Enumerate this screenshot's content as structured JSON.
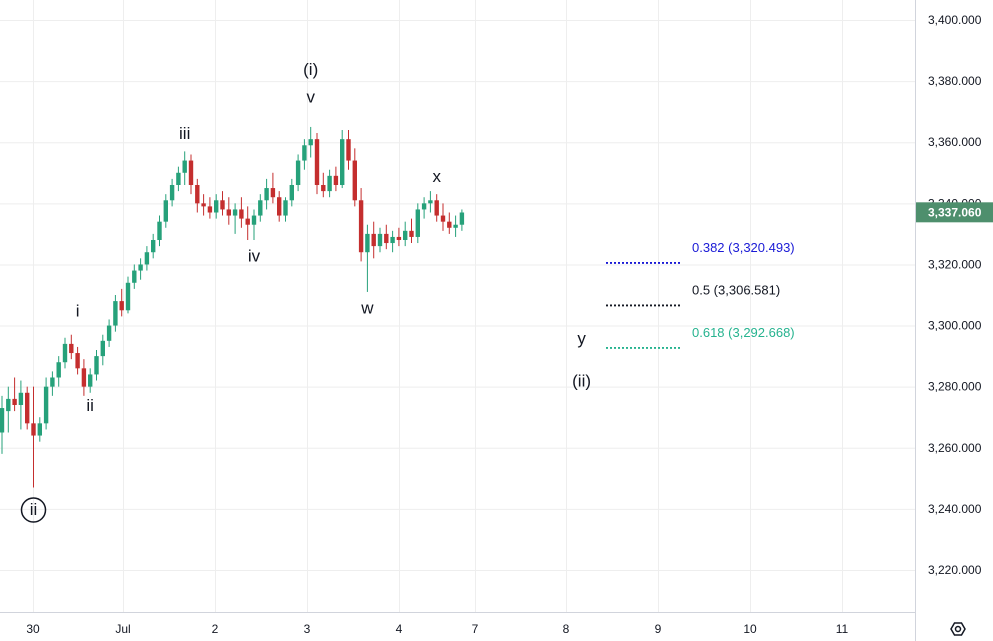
{
  "chart_data": {
    "type": "candlestick",
    "instrument_price_label": "3,337.060",
    "y_axis": {
      "ylim": [
        3205,
        3410
      ],
      "ticks": [
        3400,
        3380,
        3360,
        3340,
        3320,
        3300,
        3280,
        3260,
        3240,
        3220
      ],
      "tick_labels": [
        "3,400.000",
        "3,380.000",
        "3,360.000",
        "3,340.000",
        "3,320.000",
        "3,300.000",
        "3,280.000",
        "3,260.000",
        "3,240.000",
        "3,220.000"
      ]
    },
    "x_axis": {
      "tick_labels": [
        "30",
        "Jul",
        "2",
        "3",
        "4",
        "7",
        "8",
        "9",
        "10",
        "11"
      ]
    },
    "last_price": 3337.06,
    "candles": [
      [
        3265,
        3277,
        3258,
        3273
      ],
      [
        3272,
        3280,
        3265,
        3276
      ],
      [
        3276,
        3283,
        3272,
        3274
      ],
      [
        3274,
        3282,
        3266,
        3278
      ],
      [
        3278,
        3280,
        3266,
        3268
      ],
      [
        3268,
        3280,
        3247,
        3264
      ],
      [
        3264,
        3270,
        3262,
        3268
      ],
      [
        3268,
        3283,
        3266,
        3280
      ],
      [
        3280,
        3285,
        3277,
        3283
      ],
      [
        3283,
        3290,
        3280,
        3288
      ],
      [
        3288,
        3296,
        3286,
        3294
      ],
      [
        3294,
        3297,
        3289,
        3291
      ],
      [
        3291,
        3293,
        3284,
        3286
      ],
      [
        3286,
        3289,
        3277,
        3280
      ],
      [
        3280,
        3286,
        3278,
        3284
      ],
      [
        3284,
        3292,
        3282,
        3290
      ],
      [
        3290,
        3297,
        3287,
        3295
      ],
      [
        3295,
        3302,
        3293,
        3300
      ],
      [
        3300,
        3310,
        3298,
        3308
      ],
      [
        3308,
        3312,
        3303,
        3305
      ],
      [
        3305,
        3316,
        3304,
        3314
      ],
      [
        3314,
        3320,
        3312,
        3318
      ],
      [
        3318,
        3322,
        3315,
        3320
      ],
      [
        3320,
        3326,
        3318,
        3324
      ],
      [
        3324,
        3330,
        3322,
        3328
      ],
      [
        3328,
        3336,
        3326,
        3334
      ],
      [
        3334,
        3343,
        3332,
        3341
      ],
      [
        3341,
        3348,
        3339,
        3346
      ],
      [
        3346,
        3352,
        3344,
        3350
      ],
      [
        3350,
        3357,
        3346,
        3354
      ],
      [
        3354,
        3356,
        3343,
        3346
      ],
      [
        3346,
        3348,
        3337,
        3340
      ],
      [
        3340,
        3343,
        3336,
        3339
      ],
      [
        3339,
        3342,
        3335,
        3337
      ],
      [
        3337,
        3343,
        3335,
        3341
      ],
      [
        3341,
        3344,
        3336,
        3338
      ],
      [
        3338,
        3342,
        3333,
        3336
      ],
      [
        3336,
        3340,
        3330,
        3338
      ],
      [
        3338,
        3342,
        3332,
        3335
      ],
      [
        3335,
        3339,
        3328,
        3333
      ],
      [
        3333,
        3338,
        3328,
        3336
      ],
      [
        3336,
        3343,
        3334,
        3341
      ],
      [
        3341,
        3348,
        3338,
        3345
      ],
      [
        3345,
        3350,
        3340,
        3342
      ],
      [
        3342,
        3344,
        3334,
        3336
      ],
      [
        3336,
        3342,
        3334,
        3341
      ],
      [
        3341,
        3348,
        3339,
        3346
      ],
      [
        3346,
        3356,
        3344,
        3354
      ],
      [
        3354,
        3361,
        3351,
        3359
      ],
      [
        3359,
        3365,
        3355,
        3361
      ],
      [
        3361,
        3363,
        3343,
        3346
      ],
      [
        3346,
        3350,
        3342,
        3344
      ],
      [
        3344,
        3351,
        3342,
        3349
      ],
      [
        3349,
        3352,
        3344,
        3346
      ],
      [
        3346,
        3364,
        3345,
        3361
      ],
      [
        3361,
        3364,
        3351,
        3354
      ],
      [
        3354,
        3358,
        3339,
        3341
      ],
      [
        3341,
        3345,
        3321,
        3324
      ],
      [
        3324,
        3333,
        3311,
        3330
      ],
      [
        3330,
        3334,
        3322,
        3326
      ],
      [
        3326,
        3332,
        3324,
        3330
      ],
      [
        3330,
        3333,
        3325,
        3327
      ],
      [
        3327,
        3331,
        3324,
        3329
      ],
      [
        3329,
        3332,
        3326,
        3328
      ],
      [
        3328,
        3334,
        3326,
        3331
      ],
      [
        3331,
        3335,
        3327,
        3329
      ],
      [
        3329,
        3340,
        3327,
        3338
      ],
      [
        3338,
        3342,
        3335,
        3340
      ],
      [
        3340,
        3344,
        3337,
        3341
      ],
      [
        3341,
        3343,
        3334,
        3336
      ],
      [
        3336,
        3340,
        3331,
        3334
      ],
      [
        3334,
        3337,
        3330,
        3332
      ],
      [
        3332,
        3336,
        3329,
        3333
      ],
      [
        3333,
        3338,
        3331,
        3337
      ]
    ],
    "wave_labels": [
      {
        "text": "i",
        "price": 3303,
        "index": 12
      },
      {
        "text": "ii",
        "price": 3272,
        "index": 14
      },
      {
        "text": "iii",
        "price": 3361,
        "index": 29
      },
      {
        "text": "iv",
        "price": 3321,
        "index": 40
      },
      {
        "text": "(i)",
        "price": 3382,
        "index": 49
      },
      {
        "text": "v",
        "price": 3373,
        "index": 49
      },
      {
        "text": "w",
        "price": 3304,
        "index": 58
      },
      {
        "text": "x",
        "price": 3347,
        "index": 69
      },
      {
        "text": "y",
        "price": 3294,
        "index": 92
      },
      {
        "text": "(ii)",
        "price": 3280,
        "index": 92
      }
    ],
    "circled_label": {
      "text": "ii",
      "price": 3238,
      "index": 5
    },
    "fib_levels": [
      {
        "label": "0.382 (3,320.493)",
        "value": 3320.493,
        "color": "#1a1ad6"
      },
      {
        "label": "0.5 (3,306.581)",
        "value": 3306.581,
        "color": "#131722"
      },
      {
        "label": "0.618 (3,292.668)",
        "value": 3292.668,
        "color": "#26b38f"
      }
    ],
    "colors": {
      "up": "#26a17a",
      "down": "#c42e2e",
      "grid": "#eeeeee",
      "price_tag": "#4e8f6d"
    }
  },
  "settings_icon": "settings-icon"
}
